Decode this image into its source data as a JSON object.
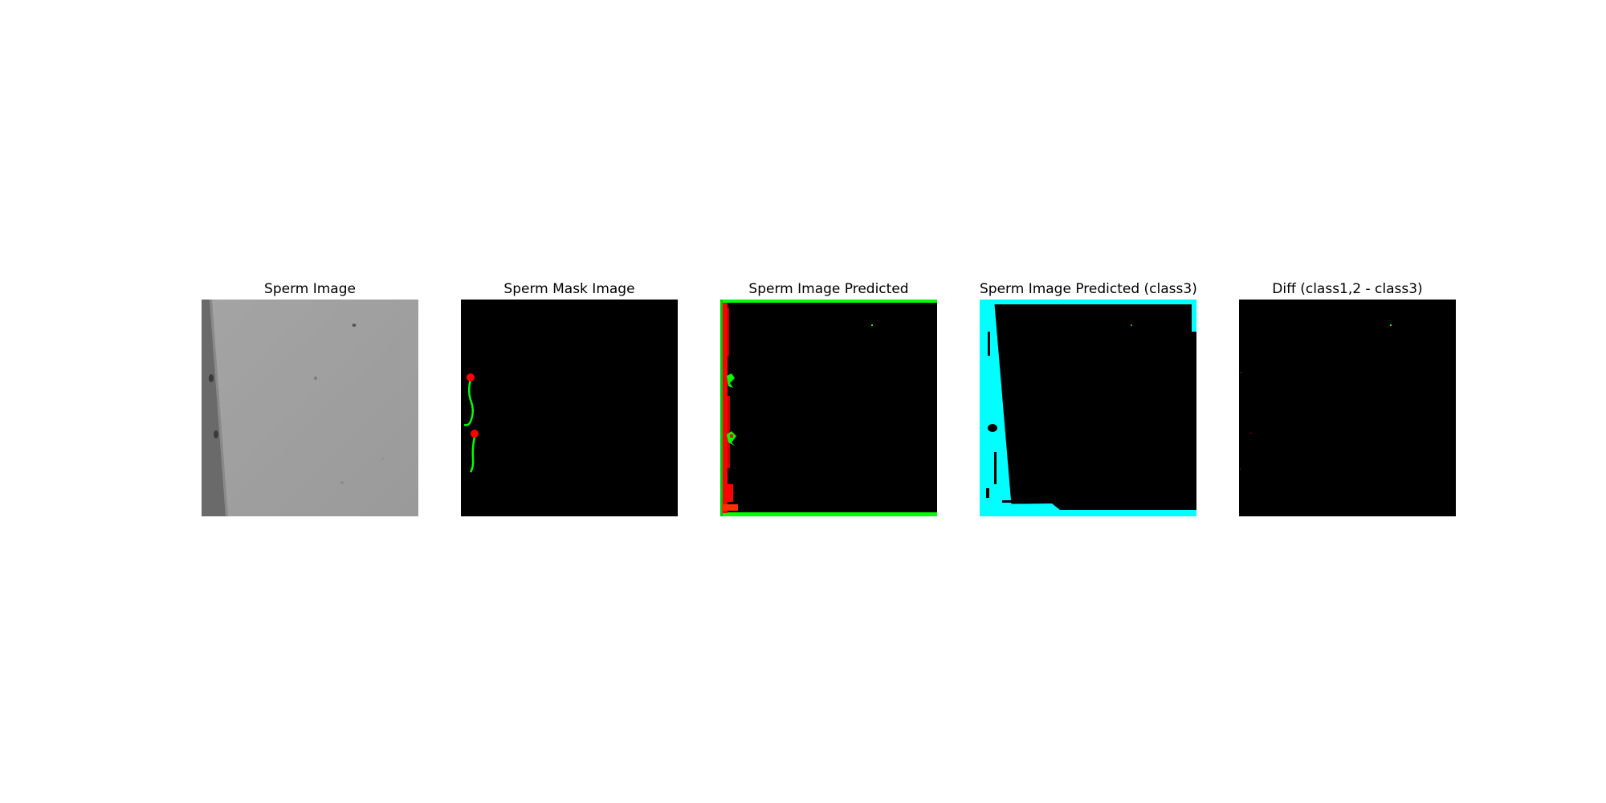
{
  "figure": {
    "panels": [
      {
        "title": "Sperm Image"
      },
      {
        "title": "Sperm Mask Image"
      },
      {
        "title": "Sperm Image Predicted"
      },
      {
        "title": "Sperm Image Predicted (class3)"
      },
      {
        "title": "Diff (class1,2 - class3)"
      }
    ]
  },
  "colors": {
    "background_class": "#000000",
    "head_class": "#ff0000",
    "tail_class": "#00ff00",
    "class3": "#00ffff",
    "microscope_gray": "#a6a6a6"
  }
}
